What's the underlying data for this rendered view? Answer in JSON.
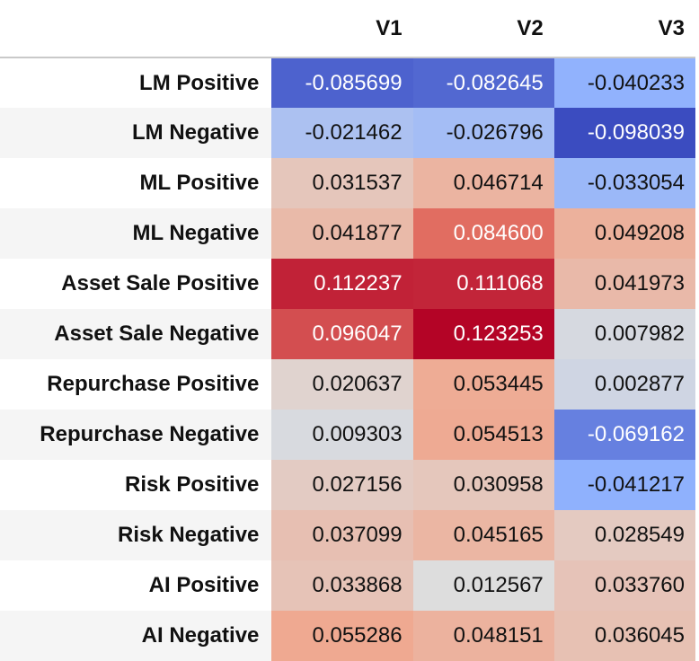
{
  "colors": {
    "scale_min": "#3b4cc0",
    "scale_mid": "#dddddd",
    "scale_max": "#b40426"
  },
  "chart_data": {
    "type": "heatmap",
    "colormap": "coolwarm",
    "columns": [
      "V1",
      "V2",
      "V3"
    ],
    "rows": [
      {
        "label": "LM Positive",
        "values": [
          "-0.085699",
          "-0.082645",
          "-0.040233"
        ]
      },
      {
        "label": "LM Negative",
        "values": [
          "-0.021462",
          "-0.026796",
          "-0.098039"
        ]
      },
      {
        "label": "ML Positive",
        "values": [
          "0.031537",
          "0.046714",
          "-0.033054"
        ]
      },
      {
        "label": "ML Negative",
        "values": [
          "0.041877",
          "0.084600",
          "0.049208"
        ]
      },
      {
        "label": "Asset Sale Positive",
        "values": [
          "0.112237",
          "0.111068",
          "0.041973"
        ]
      },
      {
        "label": "Asset Sale Negative",
        "values": [
          "0.096047",
          "0.123253",
          "0.007982"
        ]
      },
      {
        "label": "Repurchase Positive",
        "values": [
          "0.020637",
          "0.053445",
          "0.002877"
        ]
      },
      {
        "label": "Repurchase Negative",
        "values": [
          "0.009303",
          "0.054513",
          "-0.069162"
        ]
      },
      {
        "label": "Risk Positive",
        "values": [
          "0.027156",
          "0.030958",
          "-0.041217"
        ]
      },
      {
        "label": "Risk Negative",
        "values": [
          "0.037099",
          "0.045165",
          "0.028549"
        ]
      },
      {
        "label": "AI Positive",
        "values": [
          "0.033868",
          "0.012567",
          "0.033760"
        ]
      },
      {
        "label": "AI Negative",
        "values": [
          "0.055286",
          "0.048151",
          "0.036045"
        ]
      }
    ]
  }
}
